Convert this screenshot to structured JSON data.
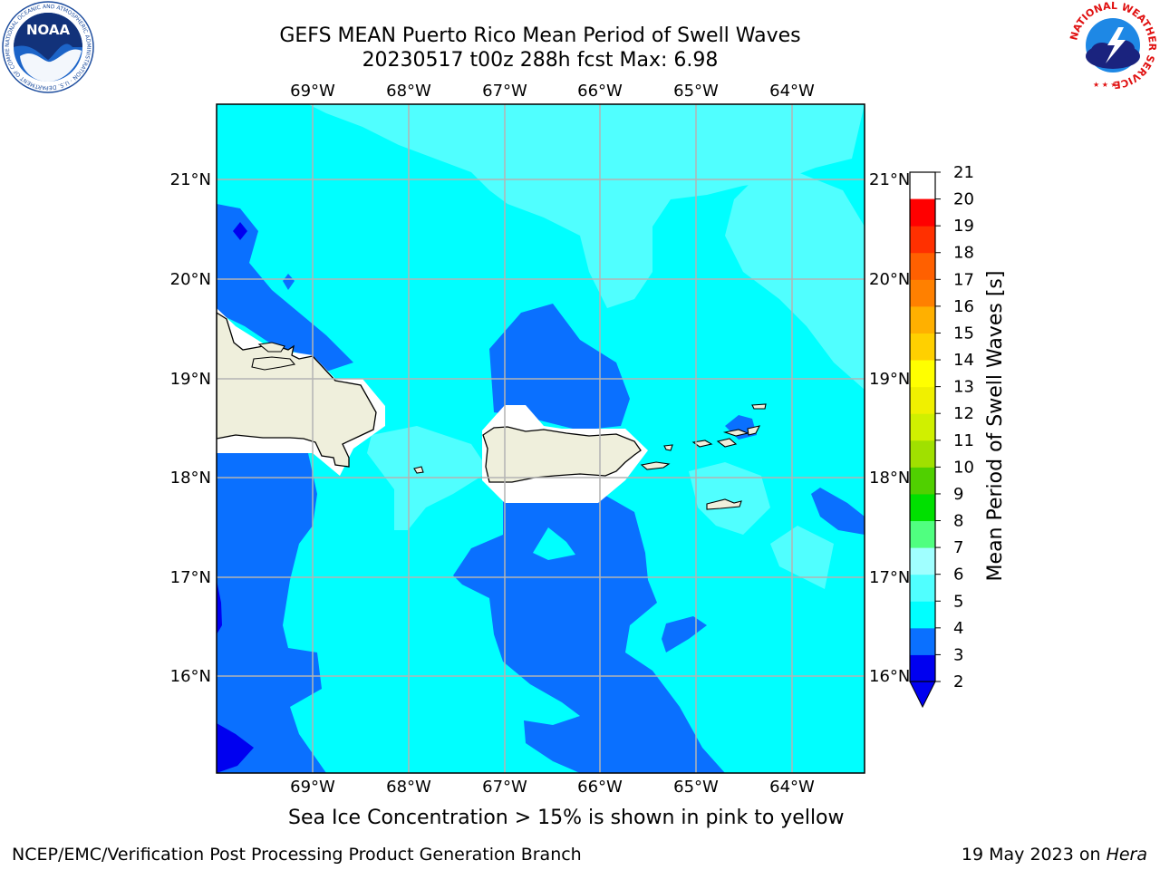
{
  "header": {
    "title_line1": "GEFS MEAN Puerto Rico Mean Period of Swell Waves",
    "title_line2": "20230517 t00z 288h fcst   Max: 6.98"
  },
  "map": {
    "lon_labels": [
      "69°W",
      "68°W",
      "67°W",
      "66°W",
      "65°W",
      "64°W"
    ],
    "lat_labels": [
      "21°N",
      "20°N",
      "19°N",
      "18°N",
      "17°N",
      "16°N"
    ],
    "extent": {
      "lon_min": -70.0,
      "lon_max": -63.25,
      "lat_min": 15.0,
      "lat_max": 21.75
    },
    "grid": "on"
  },
  "colorbar": {
    "label": "Mean Period of Swell Waves [s]",
    "ticks": [
      "21",
      "20",
      "19",
      "18",
      "17",
      "16",
      "15",
      "14",
      "13",
      "12",
      "11",
      "10",
      "9",
      "8",
      "7",
      "6",
      "5",
      "4",
      "3",
      "2"
    ],
    "tick_values": [
      21,
      20,
      19,
      18,
      17,
      16,
      15,
      14,
      13,
      12,
      11,
      10,
      9,
      8,
      7,
      6,
      5,
      4,
      3,
      2
    ],
    "min": 2,
    "max": 21,
    "colors": [
      "#0000f0",
      "#0a70ff",
      "#00ffff",
      "#50ffff",
      "#a0ffff",
      "#50ff80",
      "#00e000",
      "#50d000",
      "#a0e000",
      "#d0f000",
      "#f0f000",
      "#ffff00",
      "#ffd000",
      "#ffb000",
      "#ff8000",
      "#ff6000",
      "#ff3000",
      "#ff0000"
    ]
  },
  "logos": {
    "noaa_text": "NOAA",
    "noaa_ring": "NATIONAL OCEANIC AND ATMOSPHERIC ADMINISTRATION · U.S. DEPARTMENT OF COMMERCE",
    "nws_ring": "NATIONAL WEATHER SERVICE"
  },
  "note": "Sea Ice Concentration > 15% is shown in pink to yellow",
  "footer": {
    "left": "NCEP/EMC/Verification Post Processing Product Generation Branch",
    "date": "19 May 2023 on ",
    "machine": "Hera"
  }
}
